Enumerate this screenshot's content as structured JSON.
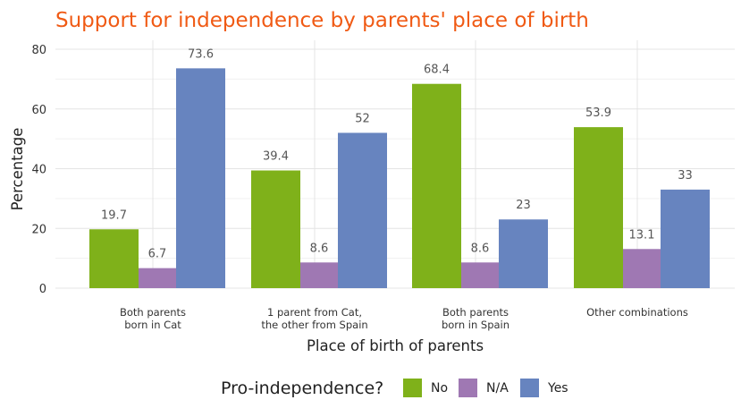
{
  "chart_data": {
    "type": "bar",
    "title": "Support for independence by parents' place of birth",
    "title_color": "#f05a14",
    "xlabel": "Place of birth of parents",
    "ylabel": "Percentage",
    "categories": [
      [
        "Both parents",
        "born in Cat"
      ],
      [
        "1 parent from Cat,",
        "the other from Spain"
      ],
      [
        "Both parents",
        "born in Spain"
      ],
      [
        "Other combinations"
      ]
    ],
    "series": [
      {
        "name": "No",
        "color": "#7fb11a",
        "values": [
          19.7,
          39.4,
          68.4,
          53.9
        ]
      },
      {
        "name": "N/A",
        "color": "#9f78b3",
        "values": [
          6.7,
          8.6,
          8.6,
          13.1
        ]
      },
      {
        "name": "Yes",
        "color": "#6784bf",
        "values": [
          73.6,
          52,
          23,
          33
        ]
      }
    ],
    "ylim": [
      0,
      80
    ],
    "yticks": [
      0,
      20,
      40,
      60,
      80
    ],
    "grid": true,
    "legend": {
      "title": "Pro-independence?",
      "position": "bottom"
    }
  }
}
